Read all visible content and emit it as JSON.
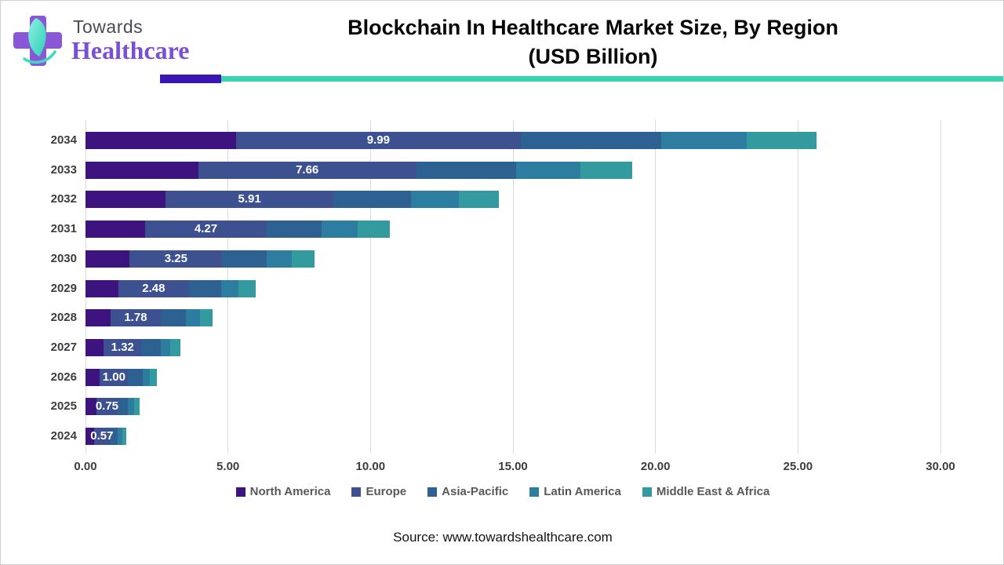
{
  "header": {
    "logo_line1": "Towards",
    "logo_line2": "Healthcare",
    "title_line1": "Blockchain In Healthcare Market Size, By Region",
    "title_line2": "(USD Billion)",
    "divider_purple": "#3b16b4",
    "divider_teal": "#36d5b0",
    "logo_cross_color": "#8a57d6",
    "logo_leaf_color": "#3ed9c0"
  },
  "chart_data": {
    "type": "bar",
    "orientation": "horizontal",
    "stacked": true,
    "title": "Blockchain In Healthcare Market Size, By Region (USD Billion)",
    "categories": [
      "2034",
      "2033",
      "2032",
      "2031",
      "2030",
      "2029",
      "2028",
      "2027",
      "2026",
      "2025",
      "2024"
    ],
    "series": [
      {
        "name": "North America",
        "color": "#3d1380",
        "values": [
          5.28,
          3.95,
          2.8,
          2.09,
          1.55,
          1.15,
          0.87,
          0.64,
          0.5,
          0.38,
          0.29
        ]
      },
      {
        "name": "Europe",
        "color": "#3d5191",
        "values": [
          9.99,
          7.66,
          5.91,
          4.27,
          3.25,
          2.48,
          1.78,
          1.32,
          1.0,
          0.75,
          0.57
        ]
      },
      {
        "name": "Asia-Pacific",
        "color": "#2d6191",
        "values": [
          4.93,
          3.5,
          2.7,
          1.92,
          1.55,
          1.13,
          0.86,
          0.67,
          0.5,
          0.37,
          0.28
        ]
      },
      {
        "name": "Latin America",
        "color": "#2d7da1",
        "values": [
          3.0,
          2.25,
          1.68,
          1.28,
          0.88,
          0.62,
          0.5,
          0.35,
          0.26,
          0.2,
          0.15
        ]
      },
      {
        "name": "Middle East & Africa",
        "color": "#339aa0",
        "values": [
          2.45,
          1.83,
          1.42,
          1.12,
          0.8,
          0.6,
          0.45,
          0.34,
          0.25,
          0.19,
          0.14
        ]
      }
    ],
    "bar_labels": [
      "9.99",
      "7.66",
      "5.91",
      "4.27",
      "3.25",
      "2.48",
      "1.78",
      "1.32",
      "1.00",
      "0.75",
      "0.57"
    ],
    "bar_labels_series": "Europe",
    "xlabel": "",
    "ylabel": "",
    "xlim": [
      0,
      30
    ],
    "x_ticks": [
      "0.00",
      "5.00",
      "10.00",
      "15.00",
      "20.00",
      "25.00",
      "30.00"
    ],
    "grid": "vertical",
    "legend_position": "bottom"
  },
  "source": {
    "text": "Source: www.towardshealthcare.com"
  }
}
